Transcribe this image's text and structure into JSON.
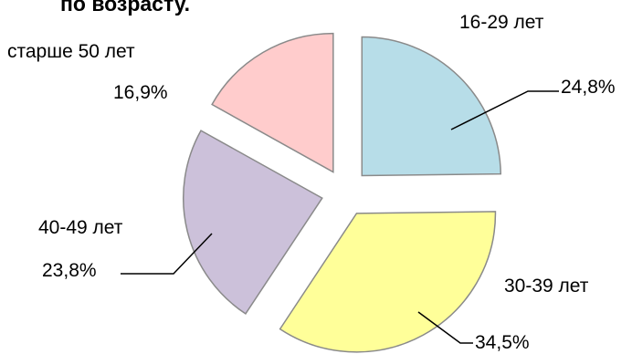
{
  "chart_data": {
    "type": "pie",
    "title": "по возрасту.",
    "categories": [
      "16-29 лет",
      "30-39 лет",
      "40-49 лет",
      "старше 50 лет"
    ],
    "values": [
      24.8,
      34.5,
      23.8,
      16.9
    ],
    "value_labels": [
      "24,8%",
      "34,5%",
      "23,8%",
      "16,9%"
    ],
    "colors": [
      "#b7dde8",
      "#ffff99",
      "#ccc1da",
      "#ffcccc"
    ],
    "exploded": true,
    "legend": "none (labels beside slices with leader lines)"
  }
}
